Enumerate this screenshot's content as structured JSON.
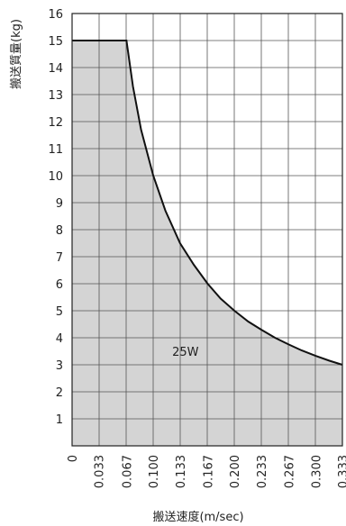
{
  "chart_data": {
    "type": "area",
    "xlabel": "搬送速度(m/sec)",
    "ylabel": "搬送質量(kg)",
    "xlim": [
      0,
      0.333
    ],
    "ylim": [
      0,
      16
    ],
    "x_ticks": [
      "0",
      "0.033",
      "0.067",
      "0.100",
      "0.133",
      "0.167",
      "0.200",
      "0.233",
      "0.267",
      "0.300",
      "0.333"
    ],
    "y_ticks": [
      "1",
      "2",
      "3",
      "4",
      "5",
      "6",
      "7",
      "8",
      "9",
      "10",
      "11",
      "12",
      "13",
      "14",
      "15",
      "16"
    ],
    "grid": true,
    "series": [
      {
        "name": "25W",
        "x": [
          0,
          0.067,
          0.075,
          0.085,
          0.1,
          0.115,
          0.133,
          0.15,
          0.167,
          0.183,
          0.2,
          0.217,
          0.233,
          0.25,
          0.267,
          0.283,
          0.3,
          0.317,
          0.333
        ],
        "values": [
          15,
          15,
          13.3,
          11.7,
          10.0,
          8.7,
          7.5,
          6.7,
          6.0,
          5.45,
          5.0,
          4.6,
          4.3,
          4.0,
          3.75,
          3.53,
          3.33,
          3.15,
          3.0
        ]
      }
    ],
    "colors": {
      "fill": "#d4d4d4",
      "line": "#111111",
      "grid": "#555555"
    }
  }
}
